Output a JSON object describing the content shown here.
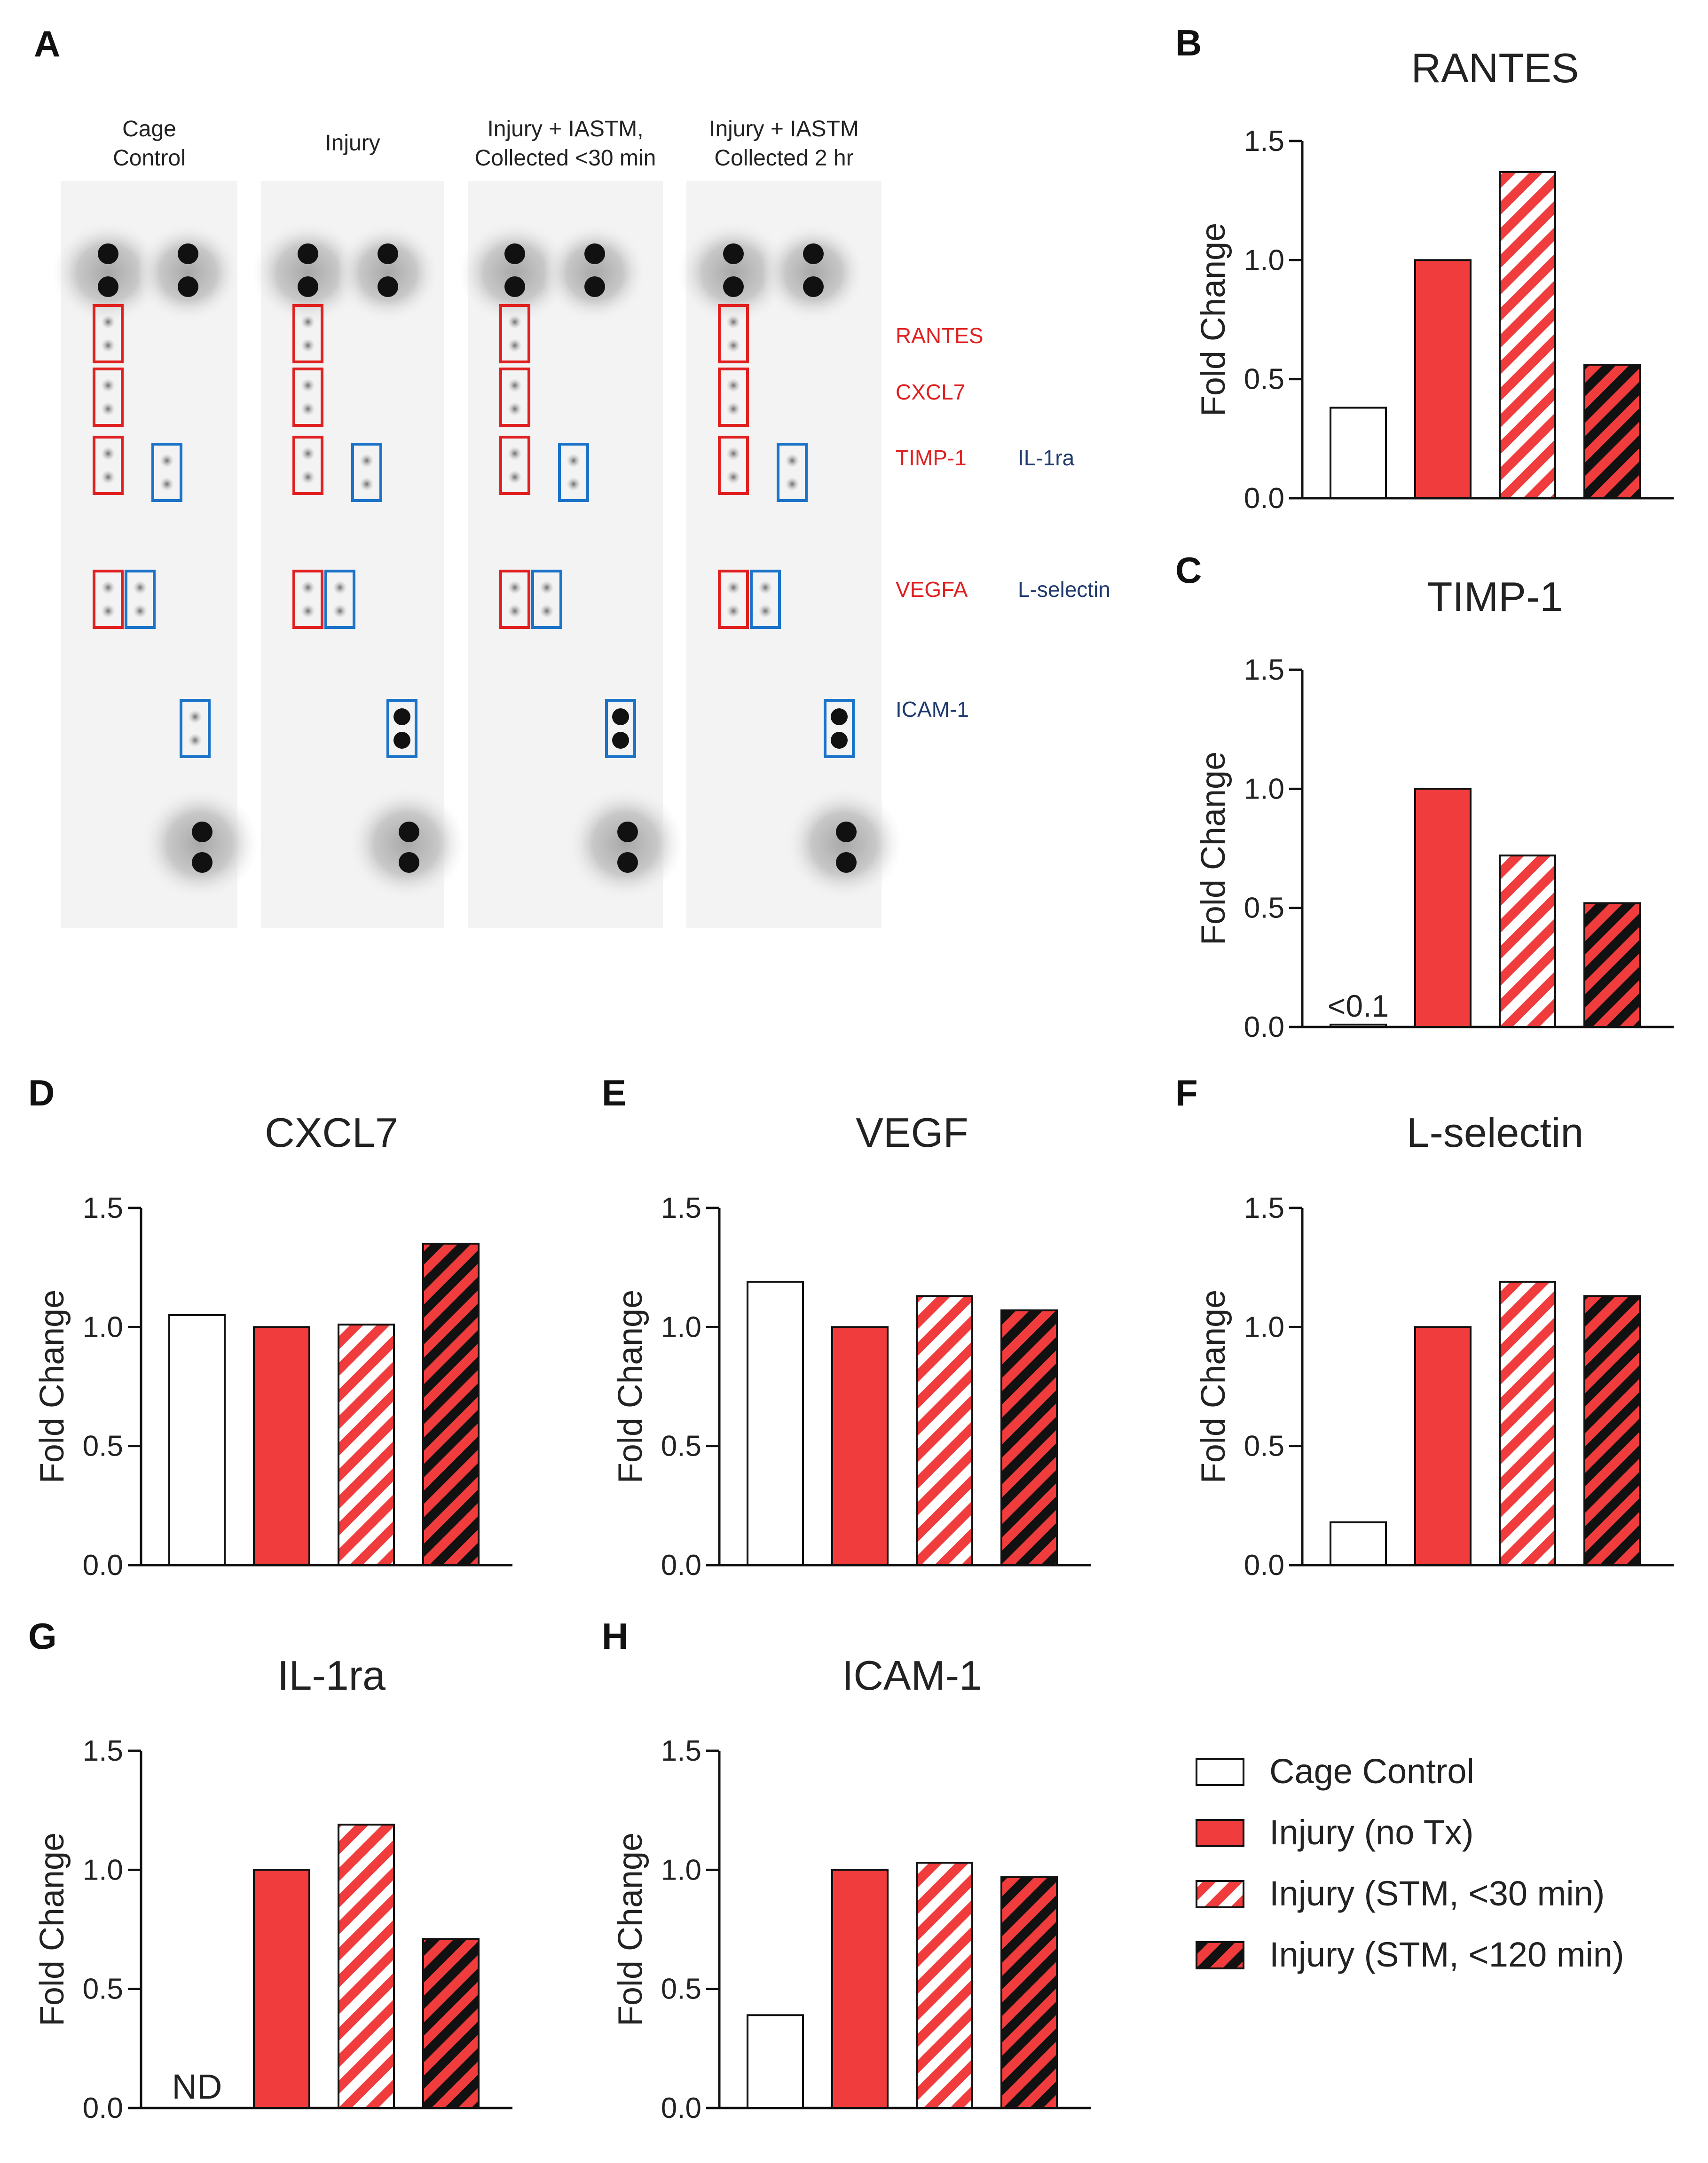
{
  "colors": {
    "red": "#f03c3c",
    "black": "#111111",
    "white": "#ffffff",
    "blot_red": "#e02020",
    "blot_blue": "#1a73c8",
    "label_red": "#e02020",
    "label_navy": "#1f3a6e"
  },
  "panel_letters": [
    "A",
    "B",
    "C",
    "D",
    "E",
    "F",
    "G",
    "H"
  ],
  "blot": {
    "columns": [
      {
        "line1": "Cage",
        "line2": "Control"
      },
      {
        "line1": "Injury",
        "line2": ""
      },
      {
        "line1": "Injury + IASTM,",
        "line2": "Collected <30 min"
      },
      {
        "line1": "Injury + IASTM",
        "line2": "Collected 2 hr"
      }
    ],
    "labels_red": [
      "RANTES",
      "CXCL7",
      "TIMP-1",
      "VEGFA"
    ],
    "labels_blue": [
      "IL-1ra",
      "L-selectin",
      "ICAM-1"
    ]
  },
  "legend": [
    {
      "label": "Cage Control",
      "style": "white"
    },
    {
      "label": "Injury (no Tx)",
      "style": "red"
    },
    {
      "label": "Injury (STM, <30 min)",
      "style": "redstripe"
    },
    {
      "label": "Injury (STM, <120 min)",
      "style": "blackstripe"
    }
  ],
  "chart_data": [
    {
      "panel": "B",
      "type": "bar",
      "title": "RANTES",
      "ylabel": "Fold Change",
      "ylim": [
        0,
        1.5
      ],
      "yticks": [
        "0.0",
        "0.5",
        "1.0",
        "1.5"
      ],
      "values": [
        0.38,
        1.0,
        1.37,
        0.56
      ],
      "annotation": ""
    },
    {
      "panel": "C",
      "type": "bar",
      "title": "TIMP-1",
      "ylabel": "Fold Change",
      "ylim": [
        0,
        1.5
      ],
      "yticks": [
        "0.0",
        "0.5",
        "1.0",
        "1.5"
      ],
      "values": [
        0.01,
        1.0,
        0.72,
        0.52
      ],
      "annotation": "<0.1"
    },
    {
      "panel": "D",
      "type": "bar",
      "title": "CXCL7",
      "ylabel": "Fold Change",
      "ylim": [
        0,
        1.5
      ],
      "yticks": [
        "0.0",
        "0.5",
        "1.0",
        "1.5"
      ],
      "values": [
        1.05,
        1.0,
        1.01,
        1.35
      ],
      "annotation": ""
    },
    {
      "panel": "E",
      "type": "bar",
      "title": "VEGF",
      "ylabel": "Fold Change",
      "ylim": [
        0,
        1.5
      ],
      "yticks": [
        "0.0",
        "0.5",
        "1.0",
        "1.5"
      ],
      "values": [
        1.19,
        1.0,
        1.13,
        1.07
      ],
      "annotation": ""
    },
    {
      "panel": "F",
      "type": "bar",
      "title": "L-selectin",
      "ylabel": "Fold Change",
      "ylim": [
        0,
        1.5
      ],
      "yticks": [
        "0.0",
        "0.5",
        "1.0",
        "1.5"
      ],
      "values": [
        0.18,
        1.0,
        1.19,
        1.13
      ],
      "annotation": ""
    },
    {
      "panel": "G",
      "type": "bar",
      "title": "IL-1ra",
      "ylabel": "Fold Change",
      "ylim": [
        0,
        1.5
      ],
      "yticks": [
        "0.0",
        "0.5",
        "1.0",
        "1.5"
      ],
      "values": [
        null,
        1.0,
        1.19,
        0.71
      ],
      "annotation": "ND"
    },
    {
      "panel": "H",
      "type": "bar",
      "title": "ICAM-1",
      "ylabel": "Fold Change",
      "ylim": [
        0,
        1.5
      ],
      "yticks": [
        "0.0",
        "0.5",
        "1.0",
        "1.5"
      ],
      "values": [
        0.39,
        1.0,
        1.03,
        0.97
      ],
      "annotation": ""
    }
  ]
}
